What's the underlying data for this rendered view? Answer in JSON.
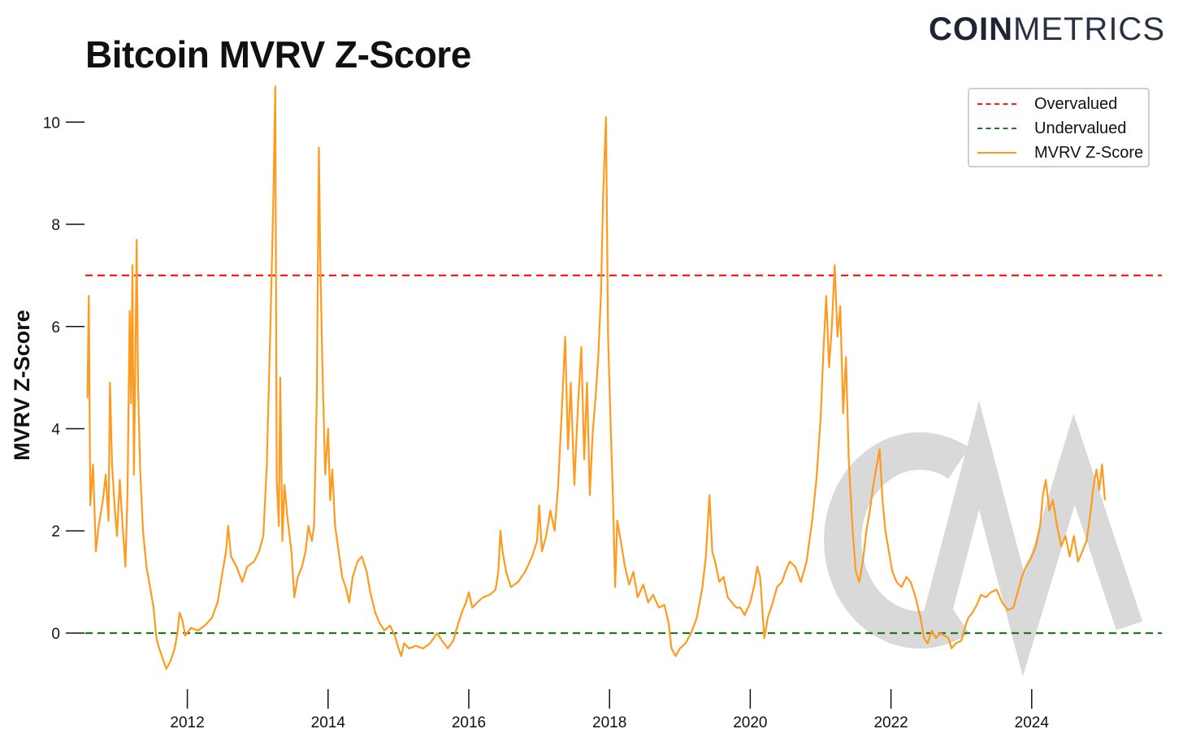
{
  "title": "Bitcoin MVRV Z-Score",
  "brand": {
    "bold": "COIN",
    "light": "METRICS",
    "watermark": "CM"
  },
  "colors": {
    "overvalued": "#ff1a1a",
    "undervalued": "#1f7a1f",
    "series": "#ff9a1f",
    "watermark": "#d9d9d9"
  },
  "legend": {
    "placement": "top-right",
    "items": [
      "Overvalued",
      "Undervalued",
      "MVRV Z-Score"
    ]
  },
  "chart_data": {
    "type": "line",
    "title": "Bitcoin MVRV Z-Score",
    "ylabel": "MVRV Z-Score",
    "xlabel": "",
    "xlim": [
      2010.55,
      2025.85
    ],
    "ylim": [
      -1.05,
      10.8
    ],
    "grid": false,
    "x_ticks": [
      2012,
      2014,
      2016,
      2018,
      2020,
      2022,
      2024
    ],
    "x_tick_labels": [
      "2012",
      "2014",
      "2016",
      "2018",
      "2020",
      "2022",
      "2024"
    ],
    "y_ticks": [
      0,
      2,
      4,
      6,
      8,
      10
    ],
    "y_tick_labels": [
      "0",
      "2",
      "4",
      "6",
      "8",
      "10"
    ],
    "reference_lines": [
      {
        "name": "Overvalued",
        "y": 7,
        "style": "dashed",
        "color": "#ff1a1a"
      },
      {
        "name": "Undervalued",
        "y": 0,
        "style": "dashed",
        "color": "#1f7a1f"
      }
    ],
    "series": [
      {
        "name": "MVRV Z-Score",
        "color": "#ff9a1f",
        "points": [
          [
            2010.58,
            4.6
          ],
          [
            2010.6,
            6.6
          ],
          [
            2010.62,
            2.5
          ],
          [
            2010.66,
            3.3
          ],
          [
            2010.7,
            1.6
          ],
          [
            2010.74,
            2.1
          ],
          [
            2010.8,
            2.6
          ],
          [
            2010.84,
            3.1
          ],
          [
            2010.88,
            2.2
          ],
          [
            2010.9,
            4.9
          ],
          [
            2010.93,
            3.3
          ],
          [
            2010.97,
            2.4
          ],
          [
            2011.0,
            1.9
          ],
          [
            2011.04,
            3.0
          ],
          [
            2011.08,
            2.1
          ],
          [
            2011.12,
            1.3
          ],
          [
            2011.15,
            2.8
          ],
          [
            2011.18,
            6.3
          ],
          [
            2011.2,
            4.5
          ],
          [
            2011.22,
            7.2
          ],
          [
            2011.24,
            3.1
          ],
          [
            2011.26,
            5.2
          ],
          [
            2011.28,
            7.7
          ],
          [
            2011.3,
            4.8
          ],
          [
            2011.33,
            3.2
          ],
          [
            2011.37,
            2.0
          ],
          [
            2011.42,
            1.3
          ],
          [
            2011.47,
            0.9
          ],
          [
            2011.52,
            0.5
          ],
          [
            2011.56,
            -0.1
          ],
          [
            2011.6,
            -0.3
          ],
          [
            2011.65,
            -0.5
          ],
          [
            2011.7,
            -0.7
          ],
          [
            2011.76,
            -0.55
          ],
          [
            2011.82,
            -0.3
          ],
          [
            2011.86,
            0.0
          ],
          [
            2011.89,
            0.4
          ],
          [
            2011.93,
            0.25
          ],
          [
            2011.97,
            -0.05
          ],
          [
            2012.05,
            0.1
          ],
          [
            2012.15,
            0.05
          ],
          [
            2012.25,
            0.15
          ],
          [
            2012.35,
            0.3
          ],
          [
            2012.43,
            0.6
          ],
          [
            2012.5,
            1.2
          ],
          [
            2012.55,
            1.6
          ],
          [
            2012.58,
            2.1
          ],
          [
            2012.62,
            1.5
          ],
          [
            2012.7,
            1.3
          ],
          [
            2012.78,
            1.0
          ],
          [
            2012.85,
            1.3
          ],
          [
            2012.95,
            1.4
          ],
          [
            2013.02,
            1.6
          ],
          [
            2013.08,
            1.9
          ],
          [
            2013.13,
            3.3
          ],
          [
            2013.18,
            6.0
          ],
          [
            2013.22,
            8.3
          ],
          [
            2013.25,
            10.7
          ],
          [
            2013.27,
            3.0
          ],
          [
            2013.3,
            2.1
          ],
          [
            2013.32,
            5.0
          ],
          [
            2013.35,
            1.8
          ],
          [
            2013.38,
            2.9
          ],
          [
            2013.42,
            2.3
          ],
          [
            2013.48,
            1.6
          ],
          [
            2013.52,
            0.7
          ],
          [
            2013.57,
            1.1
          ],
          [
            2013.63,
            1.3
          ],
          [
            2013.68,
            1.6
          ],
          [
            2013.72,
            2.1
          ],
          [
            2013.77,
            1.8
          ],
          [
            2013.8,
            2.1
          ],
          [
            2013.84,
            4.6
          ],
          [
            2013.87,
            9.5
          ],
          [
            2013.89,
            7.3
          ],
          [
            2013.92,
            5.2
          ],
          [
            2013.96,
            3.1
          ],
          [
            2014.0,
            4.0
          ],
          [
            2014.03,
            2.6
          ],
          [
            2014.06,
            3.2
          ],
          [
            2014.1,
            2.1
          ],
          [
            2014.15,
            1.6
          ],
          [
            2014.2,
            1.1
          ],
          [
            2014.25,
            0.9
          ],
          [
            2014.3,
            0.6
          ],
          [
            2014.35,
            1.1
          ],
          [
            2014.42,
            1.4
          ],
          [
            2014.48,
            1.5
          ],
          [
            2014.55,
            1.2
          ],
          [
            2014.6,
            0.8
          ],
          [
            2014.67,
            0.4
          ],
          [
            2014.73,
            0.2
          ],
          [
            2014.8,
            0.05
          ],
          [
            2014.88,
            0.15
          ],
          [
            2014.95,
            -0.05
          ],
          [
            2015.0,
            -0.3
          ],
          [
            2015.04,
            -0.45
          ],
          [
            2015.08,
            -0.2
          ],
          [
            2015.15,
            -0.3
          ],
          [
            2015.25,
            -0.25
          ],
          [
            2015.35,
            -0.3
          ],
          [
            2015.45,
            -0.2
          ],
          [
            2015.55,
            0.0
          ],
          [
            2015.62,
            -0.15
          ],
          [
            2015.7,
            -0.3
          ],
          [
            2015.78,
            -0.15
          ],
          [
            2015.83,
            0.1
          ],
          [
            2015.9,
            0.4
          ],
          [
            2015.96,
            0.6
          ],
          [
            2016.0,
            0.8
          ],
          [
            2016.05,
            0.5
          ],
          [
            2016.12,
            0.6
          ],
          [
            2016.2,
            0.7
          ],
          [
            2016.3,
            0.75
          ],
          [
            2016.38,
            0.85
          ],
          [
            2016.42,
            1.2
          ],
          [
            2016.45,
            2.0
          ],
          [
            2016.48,
            1.6
          ],
          [
            2016.53,
            1.2
          ],
          [
            2016.6,
            0.9
          ],
          [
            2016.7,
            1.0
          ],
          [
            2016.8,
            1.2
          ],
          [
            2016.9,
            1.5
          ],
          [
            2016.97,
            1.8
          ],
          [
            2017.0,
            2.5
          ],
          [
            2017.04,
            1.6
          ],
          [
            2017.1,
            1.9
          ],
          [
            2017.16,
            2.4
          ],
          [
            2017.22,
            2.0
          ],
          [
            2017.27,
            2.9
          ],
          [
            2017.32,
            4.3
          ],
          [
            2017.37,
            5.8
          ],
          [
            2017.41,
            3.6
          ],
          [
            2017.45,
            4.9
          ],
          [
            2017.5,
            2.9
          ],
          [
            2017.55,
            4.4
          ],
          [
            2017.6,
            5.6
          ],
          [
            2017.64,
            3.4
          ],
          [
            2017.68,
            4.9
          ],
          [
            2017.72,
            2.7
          ],
          [
            2017.76,
            3.9
          ],
          [
            2017.8,
            4.6
          ],
          [
            2017.84,
            5.4
          ],
          [
            2017.88,
            6.7
          ],
          [
            2017.91,
            8.6
          ],
          [
            2017.95,
            10.1
          ],
          [
            2017.98,
            5.8
          ],
          [
            2018.02,
            3.9
          ],
          [
            2018.05,
            2.6
          ],
          [
            2018.08,
            0.9
          ],
          [
            2018.11,
            2.2
          ],
          [
            2018.16,
            1.8
          ],
          [
            2018.22,
            1.3
          ],
          [
            2018.28,
            0.95
          ],
          [
            2018.34,
            1.2
          ],
          [
            2018.4,
            0.7
          ],
          [
            2018.48,
            0.95
          ],
          [
            2018.55,
            0.6
          ],
          [
            2018.62,
            0.75
          ],
          [
            2018.7,
            0.5
          ],
          [
            2018.78,
            0.55
          ],
          [
            2018.84,
            0.2
          ],
          [
            2018.88,
            -0.3
          ],
          [
            2018.94,
            -0.45
          ],
          [
            2019.0,
            -0.3
          ],
          [
            2019.08,
            -0.2
          ],
          [
            2019.16,
            0.0
          ],
          [
            2019.24,
            0.3
          ],
          [
            2019.32,
            0.9
          ],
          [
            2019.37,
            1.5
          ],
          [
            2019.42,
            2.7
          ],
          [
            2019.46,
            1.6
          ],
          [
            2019.5,
            1.4
          ],
          [
            2019.56,
            1.0
          ],
          [
            2019.62,
            1.1
          ],
          [
            2019.68,
            0.7
          ],
          [
            2019.74,
            0.6
          ],
          [
            2019.8,
            0.5
          ],
          [
            2019.86,
            0.5
          ],
          [
            2019.92,
            0.35
          ],
          [
            2020.0,
            0.6
          ],
          [
            2020.06,
            0.95
          ],
          [
            2020.1,
            1.3
          ],
          [
            2020.14,
            1.1
          ],
          [
            2020.2,
            -0.1
          ],
          [
            2020.25,
            0.3
          ],
          [
            2020.32,
            0.6
          ],
          [
            2020.38,
            0.9
          ],
          [
            2020.45,
            1.0
          ],
          [
            2020.5,
            1.2
          ],
          [
            2020.56,
            1.4
          ],
          [
            2020.64,
            1.3
          ],
          [
            2020.72,
            1.0
          ],
          [
            2020.8,
            1.4
          ],
          [
            2020.88,
            2.2
          ],
          [
            2020.94,
            3.0
          ],
          [
            2021.0,
            4.2
          ],
          [
            2021.04,
            5.5
          ],
          [
            2021.08,
            6.6
          ],
          [
            2021.12,
            5.2
          ],
          [
            2021.16,
            6.0
          ],
          [
            2021.2,
            7.2
          ],
          [
            2021.24,
            5.8
          ],
          [
            2021.28,
            6.4
          ],
          [
            2021.32,
            4.3
          ],
          [
            2021.36,
            5.4
          ],
          [
            2021.4,
            3.4
          ],
          [
            2021.45,
            2.1
          ],
          [
            2021.5,
            1.2
          ],
          [
            2021.55,
            1.0
          ],
          [
            2021.6,
            1.4
          ],
          [
            2021.65,
            2.0
          ],
          [
            2021.7,
            2.4
          ],
          [
            2021.75,
            2.9
          ],
          [
            2021.8,
            3.3
          ],
          [
            2021.84,
            3.6
          ],
          [
            2021.88,
            2.6
          ],
          [
            2021.92,
            2.0
          ],
          [
            2021.97,
            1.6
          ],
          [
            2022.02,
            1.2
          ],
          [
            2022.08,
            1.0
          ],
          [
            2022.15,
            0.9
          ],
          [
            2022.22,
            1.1
          ],
          [
            2022.28,
            1.0
          ],
          [
            2022.35,
            0.7
          ],
          [
            2022.42,
            0.3
          ],
          [
            2022.47,
            -0.1
          ],
          [
            2022.52,
            -0.2
          ],
          [
            2022.58,
            0.05
          ],
          [
            2022.64,
            -0.1
          ],
          [
            2022.7,
            0.0
          ],
          [
            2022.76,
            -0.05
          ],
          [
            2022.82,
            -0.1
          ],
          [
            2022.86,
            -0.3
          ],
          [
            2022.92,
            -0.2
          ],
          [
            2023.0,
            -0.15
          ],
          [
            2023.06,
            0.15
          ],
          [
            2023.1,
            0.3
          ],
          [
            2023.16,
            0.4
          ],
          [
            2023.22,
            0.55
          ],
          [
            2023.28,
            0.75
          ],
          [
            2023.35,
            0.7
          ],
          [
            2023.42,
            0.8
          ],
          [
            2023.5,
            0.85
          ],
          [
            2023.58,
            0.6
          ],
          [
            2023.66,
            0.45
          ],
          [
            2023.74,
            0.5
          ],
          [
            2023.8,
            0.8
          ],
          [
            2023.86,
            1.1
          ],
          [
            2023.92,
            1.3
          ],
          [
            2024.0,
            1.5
          ],
          [
            2024.06,
            1.7
          ],
          [
            2024.12,
            2.1
          ],
          [
            2024.16,
            2.7
          ],
          [
            2024.2,
            3.0
          ],
          [
            2024.25,
            2.4
          ],
          [
            2024.3,
            2.6
          ],
          [
            2024.36,
            2.1
          ],
          [
            2024.42,
            1.7
          ],
          [
            2024.48,
            1.9
          ],
          [
            2024.54,
            1.5
          ],
          [
            2024.6,
            1.9
          ],
          [
            2024.66,
            1.4
          ],
          [
            2024.72,
            1.6
          ],
          [
            2024.78,
            1.8
          ],
          [
            2024.84,
            2.4
          ],
          [
            2024.88,
            2.9
          ],
          [
            2024.92,
            3.2
          ],
          [
            2024.96,
            2.8
          ],
          [
            2025.0,
            3.3
          ],
          [
            2025.04,
            2.6
          ]
        ]
      }
    ]
  }
}
